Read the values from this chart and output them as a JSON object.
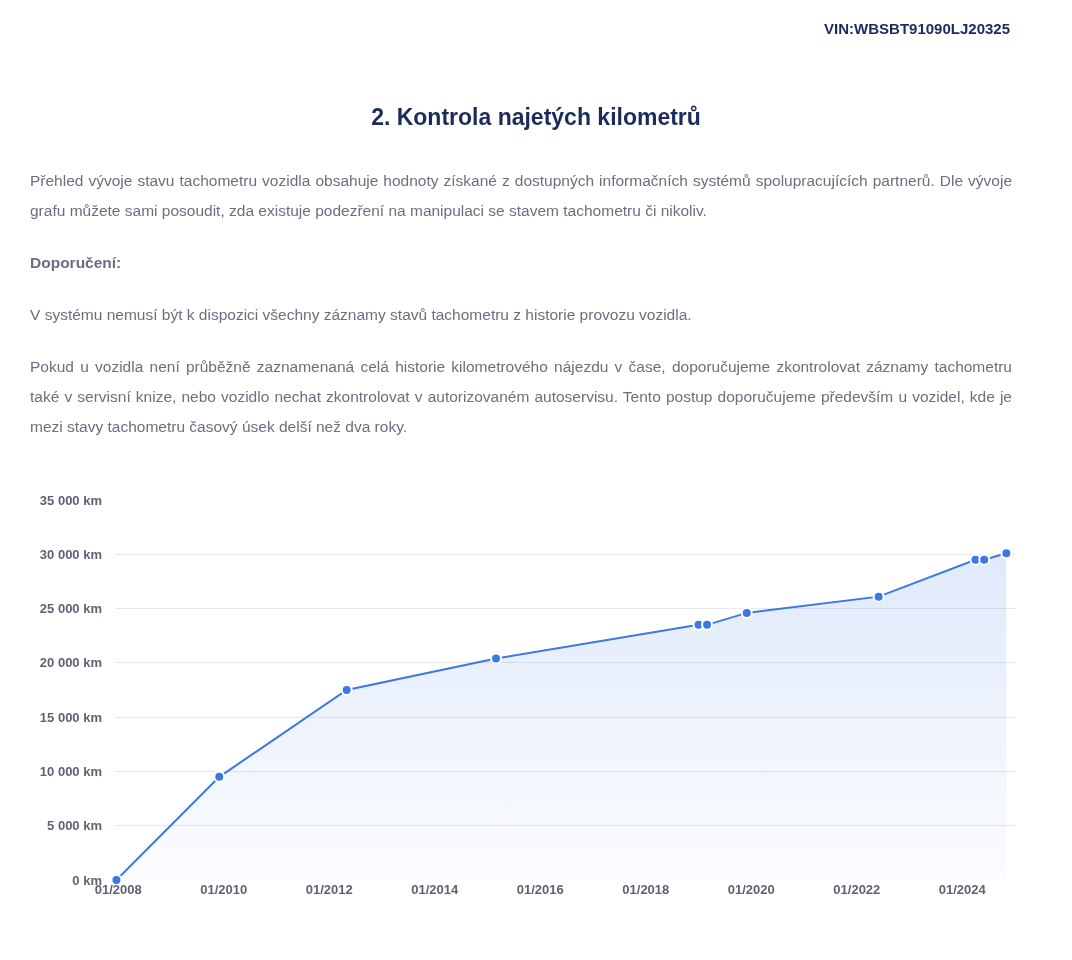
{
  "chart_data": {
    "type": "area",
    "title": "2. Kontrola najetých kilometrů",
    "annotations": [
      "VIN:WBSBT91090LJ20325",
      "Přehled vývoje stavu tachometru vozidla obsahuje hodnoty získané z dostupných informačních systémů spolupracujících partnerů. Dle vývoje grafu můžete sami posoudit, zda existuje podezření na manipulaci se stavem tachometru či nikoliv.",
      "Doporučení:",
      "V systému nemusí být k dispozici všechny záznamy stavů tachometru z historie provozu vozidla.",
      "Pokud u vozidla není průběžně zaznamenaná celá historie kilometrového nájezdu v čase, doporučujeme zkontrolovat záznamy tachometru také v servisní knize, nebo vozidlo nechat zkontrolovat v autorizovaném autoservisu. Tento postup doporučujeme především u vozidel, kde je mezi stavy tachometru časový úsek delší než dva roky."
    ],
    "x": [
      "2007-12-20",
      "2009-12",
      "2012-05",
      "2015-03",
      "2019-01",
      "2019-03",
      "2019-12",
      "2022-06",
      "2024-04",
      "2024-06",
      "2024-11"
    ],
    "series": [
      {
        "color": "#3b78e3",
        "values": [
          0,
          9500,
          17500,
          20400,
          23500,
          23500,
          24600,
          26100,
          29500,
          29500,
          30100
        ]
      }
    ],
    "xlim": [
      "2007-12-10",
      "2024-12-31"
    ],
    "xticks": [
      {
        "value": "2008-01-01",
        "label": "01/2008"
      },
      {
        "value": "2010-01-01",
        "label": "01/2010"
      },
      {
        "value": "2012-01-01",
        "label": "01/2012"
      },
      {
        "value": "2014-01-01",
        "label": "01/2014"
      },
      {
        "value": "2016-01-01",
        "label": "01/2016"
      },
      {
        "value": "2018-01-01",
        "label": "01/2018"
      },
      {
        "value": "2020-01-01",
        "label": "01/2020"
      },
      {
        "value": "2022-01-01",
        "label": "01/2022"
      },
      {
        "value": "2024-01-01",
        "label": "01/2024"
      }
    ],
    "ylim": [
      0,
      35000
    ],
    "yticks": [
      {
        "value": 0,
        "label": "0 km"
      },
      {
        "value": 5000,
        "label": "5 000 km"
      },
      {
        "value": 10000,
        "label": "10 000 km"
      },
      {
        "value": 15000,
        "label": "15 000 km"
      },
      {
        "value": 20000,
        "label": "20 000 km"
      },
      {
        "value": 25000,
        "label": "25 000 km"
      },
      {
        "value": 30000,
        "label": "30 000 km"
      },
      {
        "value": 35000,
        "label": "35 000 km"
      }
    ],
    "grid": "y",
    "legend": false,
    "marker": "circle",
    "line_style": "solid"
  }
}
